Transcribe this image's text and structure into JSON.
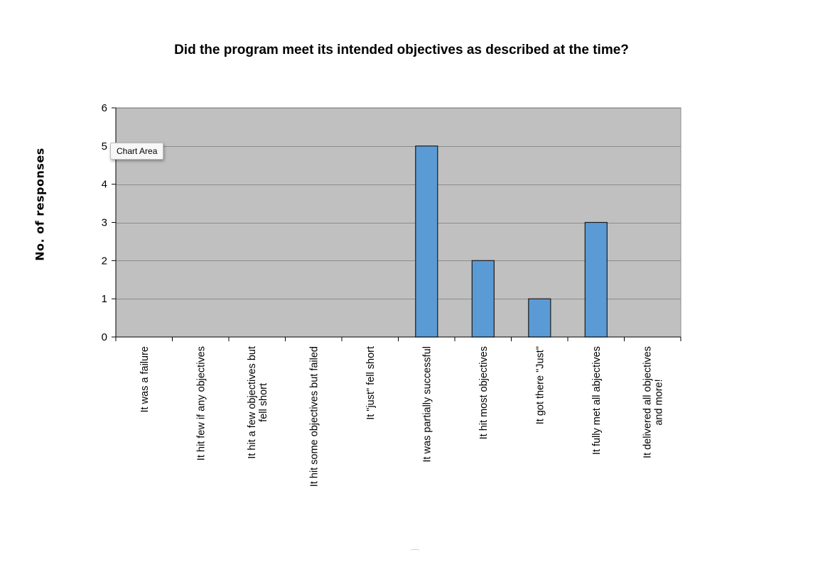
{
  "tooltip": {
    "label": "Chart Area"
  },
  "colors": {
    "plot_background": "#c0c0c0",
    "bar_fill": "#5b9bd5",
    "bar_stroke": "#1a1a1a",
    "gridline": "#8c8c8c"
  },
  "chart_data": {
    "type": "bar",
    "title": "Did the program meet its intended objectives as described at the time?",
    "xlabel": "",
    "ylabel": "No. of responses",
    "categories": [
      "It was a failure",
      "It hit few if any objectives",
      "It hit a few objectives but fell short",
      "It hit some objectives but failed",
      "It \"just\" fell short",
      "It was partially successful",
      "It hit most objectives",
      "It got there \"Just\"",
      "It fully met all abjectives",
      "It delivered all objectives and more!"
    ],
    "values": [
      0,
      0,
      0,
      0,
      0,
      5,
      2,
      1,
      3,
      0
    ],
    "ylim": [
      0,
      6
    ],
    "yticks": [
      0,
      1,
      2,
      3,
      4,
      5,
      6
    ],
    "grid": true,
    "legend": "none"
  }
}
